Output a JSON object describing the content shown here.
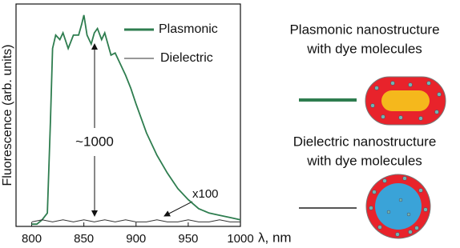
{
  "chart_data": {
    "type": "line",
    "y_label": "Fluorescence (arb. units)",
    "x_label": "λ, nm",
    "xlim": [
      785,
      1000
    ],
    "xticks": [
      800,
      850,
      900,
      950,
      1000
    ],
    "ylim": [
      0,
      100
    ],
    "series": [
      {
        "name": "Plasmonic",
        "color": "#2e7d4f",
        "x": [
          800,
          805,
          810,
          815,
          818,
          820,
          823,
          827,
          830,
          835,
          840,
          845,
          848,
          850,
          853,
          857,
          860,
          863,
          867,
          870,
          873,
          876,
          880,
          885,
          890,
          895,
          900,
          910,
          920,
          930,
          940,
          950,
          960,
          970,
          980,
          990,
          1000
        ],
        "values": [
          1,
          1,
          3,
          6,
          48,
          80,
          86,
          84,
          87,
          80,
          86,
          86,
          91,
          95,
          86,
          82,
          87,
          89,
          84,
          87,
          82,
          77,
          78,
          73,
          68,
          62,
          55,
          42,
          32,
          24,
          17,
          12,
          8,
          6,
          5,
          4,
          3
        ]
      },
      {
        "name": "Dielectric",
        "color": "#333333",
        "x": [
          800,
          810,
          820,
          830,
          840,
          850,
          860,
          870,
          880,
          890,
          900,
          910,
          920,
          930,
          940,
          950,
          960,
          970,
          980,
          990,
          1000
        ],
        "values": [
          2,
          3,
          2,
          3,
          2,
          3,
          2,
          3,
          2,
          3,
          2,
          2,
          3,
          2,
          2,
          3,
          2,
          2,
          3,
          2,
          2
        ]
      }
    ],
    "annotations": [
      "~1000",
      "x100"
    ]
  },
  "diagram": {
    "items": [
      {
        "lines": [
          "Plasmonic nanostructure",
          "with dye molecules"
        ]
      },
      {
        "lines": [
          "Dielectric nanostructure",
          "with dye molecules"
        ]
      }
    ]
  }
}
